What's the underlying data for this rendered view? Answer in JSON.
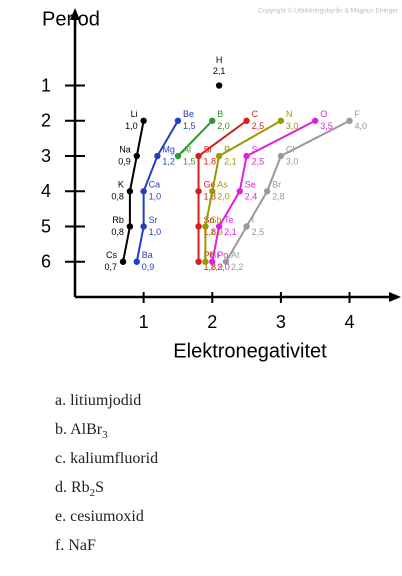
{
  "copyright": "Copyright © Utbildningsbyrån & Magnus Ehinger",
  "chart_data": {
    "type": "line",
    "y_label": "Period",
    "x_label": "Elektronegativitet",
    "xlim": [
      0,
      4.75
    ],
    "ylim": [
      7,
      -1.2
    ],
    "xticks": [
      1,
      2,
      3,
      4
    ],
    "yticks": [
      1,
      2,
      3,
      4,
      5,
      6
    ],
    "series": [
      {
        "color": "#000000",
        "labels": [
          "H"
        ],
        "x": [
          2.1
        ],
        "x_labels": [
          "2,1"
        ],
        "values": [
          1
        ]
      },
      {
        "color": "#000000",
        "labels": [
          "Li",
          "Na",
          "K",
          "Rb",
          "Cs"
        ],
        "x": [
          1.0,
          0.9,
          0.8,
          0.8,
          0.7
        ],
        "x_labels": [
          "1,0",
          "0,9",
          "0,8",
          "0,8",
          "0,7"
        ],
        "values": [
          2,
          3,
          4,
          5,
          6
        ]
      },
      {
        "color": "#1f3fbf",
        "labels": [
          "Be",
          "Mg",
          "Ca",
          "Sr",
          "Ba"
        ],
        "x": [
          1.5,
          1.2,
          1.0,
          1.0,
          0.9
        ],
        "x_labels": [
          "1,5",
          "1,2",
          "1,0",
          "1,0",
          "0,9"
        ],
        "values": [
          2,
          3,
          4,
          5,
          6
        ]
      },
      {
        "color": "#2a9a2a",
        "labels": [
          "B",
          "Al"
        ],
        "x": [
          2.0,
          1.5
        ],
        "x_labels": [
          "2,0",
          "1,5"
        ],
        "values": [
          2,
          3
        ]
      },
      {
        "color": "#d62020",
        "labels": [
          "C",
          "Si",
          "Ge",
          "Sn",
          "Pb"
        ],
        "x": [
          2.5,
          1.8,
          1.8,
          1.8,
          1.8
        ],
        "x_labels": [
          "2,5",
          "1,8",
          "1,8",
          "1,8",
          "1,8"
        ],
        "values": [
          2,
          3,
          4,
          5,
          6
        ]
      },
      {
        "color": "#9a9a00",
        "labels": [
          "N",
          "P",
          "As",
          "Sb",
          "Bi"
        ],
        "x": [
          3.0,
          2.1,
          2.0,
          1.9,
          1.9
        ],
        "x_labels": [
          "3,0",
          "2,1",
          "2,0",
          "1,9",
          "1,9"
        ],
        "values": [
          2,
          3,
          4,
          5,
          6
        ]
      },
      {
        "color": "#e020e0",
        "labels": [
          "O",
          "S",
          "Se",
          "Te",
          "Po"
        ],
        "x": [
          3.5,
          2.5,
          2.4,
          2.1,
          2.0
        ],
        "x_labels": [
          "3,5",
          "2,5",
          "2,4",
          "2,1",
          "2,0"
        ],
        "values": [
          2,
          3,
          4,
          5,
          6
        ]
      },
      {
        "color": "#999999",
        "labels": [
          "F",
          "Cl",
          "Br",
          "I",
          "At"
        ],
        "x": [
          4.0,
          3.0,
          2.8,
          2.5,
          2.2
        ],
        "x_labels": [
          "4,0",
          "3,0",
          "2,8",
          "2,5",
          "2,2"
        ],
        "values": [
          2,
          3,
          4,
          5,
          6
        ]
      }
    ]
  },
  "list": [
    [
      "a. litiumjodid"
    ],
    [
      "b. AlBr",
      "3"
    ],
    [
      "c. kaliumfluorid"
    ],
    [
      "d. Rb",
      "2",
      "S"
    ],
    [
      "e. cesiumoxid"
    ],
    [
      "f. NaF"
    ]
  ]
}
